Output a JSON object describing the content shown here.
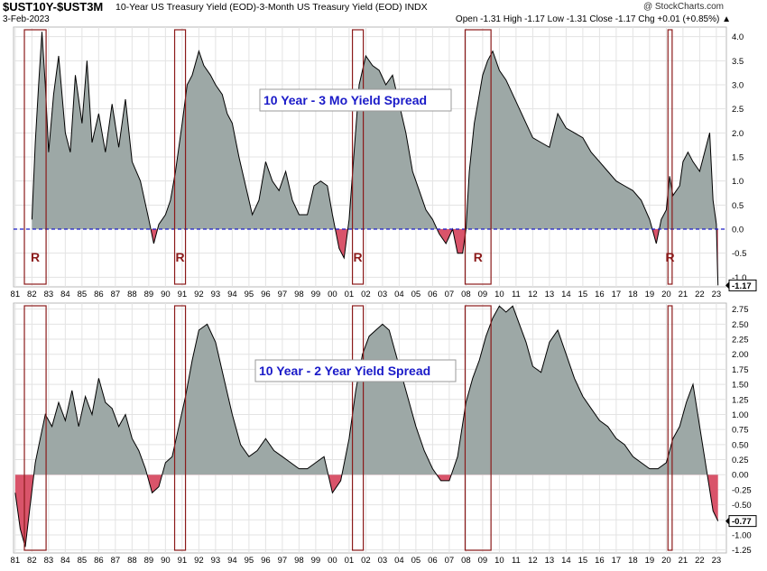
{
  "header": {
    "symbol": "$UST10Y-$UST3M",
    "description": "10-Year US Treasury Yield (EOD)-3-Month US Treasury Yield (EOD)  INDX",
    "date": "3-Feb-2023",
    "ohlc": "Open -1.31  High -1.17  Low -1.31  Close -1.17  Chg +0.01 (+0.85%) ▲",
    "watermark": "@ StockCharts.com"
  },
  "colors": {
    "positive": "#9da8a6",
    "negative": "#d9546a",
    "line": "#000000",
    "recession_box": "#8b1a1a",
    "zero_line": "#1a1ac8",
    "title_text": "#1a1ac8"
  },
  "recessions": [
    {
      "label": "R",
      "start": 1981.55,
      "end": 1982.85
    },
    {
      "label": "R",
      "start": 1990.55,
      "end": 1991.2
    },
    {
      "label": "R",
      "start": 2001.2,
      "end": 2001.85
    },
    {
      "label": "R",
      "start": 2007.95,
      "end": 2009.5
    },
    {
      "label": "R",
      "start": 2020.1,
      "end": 2020.35
    }
  ],
  "x_axis": {
    "range": [
      1980.9,
      2023.6
    ],
    "tick_labels": [
      "81",
      "82",
      "83",
      "84",
      "85",
      "86",
      "87",
      "88",
      "89",
      "90",
      "91",
      "92",
      "93",
      "94",
      "95",
      "96",
      "97",
      "98",
      "99",
      "00",
      "01",
      "02",
      "03",
      "04",
      "05",
      "06",
      "07",
      "08",
      "09",
      "10",
      "11",
      "12",
      "13",
      "14",
      "15",
      "16",
      "17",
      "18",
      "19",
      "20",
      "21",
      "22",
      "23"
    ]
  },
  "chart_data": [
    {
      "type": "area",
      "title": "10 Year - 3 Mo Yield Spread",
      "ylim": [
        -1.2,
        4.2
      ],
      "y_ticks": [
        "4.0",
        "3.5",
        "3.0",
        "2.5",
        "2.0",
        "1.5",
        "1.0",
        "0.5",
        "0.0",
        "-0.5",
        "-1.0"
      ],
      "y_tick_values": [
        4.0,
        3.5,
        3.0,
        2.5,
        2.0,
        1.5,
        1.0,
        0.5,
        0.0,
        -0.5,
        -1.0
      ],
      "last_value": "-1.17",
      "zero_line": "dashed",
      "x": [
        1982.0,
        1982.2,
        1982.4,
        1982.6,
        1982.8,
        1983.0,
        1983.3,
        1983.6,
        1984.0,
        1984.3,
        1984.6,
        1985.0,
        1985.3,
        1985.6,
        1986.0,
        1986.4,
        1986.8,
        1987.2,
        1987.6,
        1988.0,
        1988.5,
        1989.0,
        1989.3,
        1989.6,
        1990.0,
        1990.3,
        1990.6,
        1991.0,
        1991.3,
        1991.6,
        1992.0,
        1992.3,
        1992.7,
        1993.0,
        1993.4,
        1993.7,
        1994.0,
        1994.4,
        1994.8,
        1995.2,
        1995.6,
        1996.0,
        1996.4,
        1996.8,
        1997.2,
        1997.6,
        1998.0,
        1998.5,
        1998.9,
        1999.3,
        1999.7,
        2000.0,
        2000.4,
        2000.7,
        2001.0,
        2001.3,
        2001.6,
        2002.0,
        2002.4,
        2002.8,
        2003.2,
        2003.6,
        2004.0,
        2004.4,
        2004.8,
        2005.2,
        2005.6,
        2006.0,
        2006.4,
        2006.8,
        2007.2,
        2007.5,
        2007.8,
        2008.0,
        2008.2,
        2008.5,
        2008.8,
        2009.0,
        2009.3,
        2009.6,
        2010.0,
        2010.4,
        2010.8,
        2011.2,
        2011.6,
        2012.0,
        2012.5,
        2013.0,
        2013.5,
        2014.0,
        2014.5,
        2015.0,
        2015.5,
        2016.0,
        2016.5,
        2017.0,
        2017.5,
        2018.0,
        2018.5,
        2019.0,
        2019.4,
        2019.7,
        2020.0,
        2020.2,
        2020.4,
        2020.8,
        2021.0,
        2021.3,
        2021.6,
        2022.0,
        2022.3,
        2022.6,
        2022.8,
        2023.0,
        2023.1
      ],
      "values": [
        0.2,
        1.8,
        3.0,
        4.1,
        3.0,
        1.6,
        2.8,
        3.6,
        2.0,
        1.6,
        3.2,
        2.2,
        3.5,
        1.8,
        2.4,
        1.6,
        2.6,
        1.7,
        2.7,
        1.4,
        1.0,
        0.2,
        -0.3,
        0.1,
        0.3,
        0.6,
        1.2,
        2.2,
        3.0,
        3.2,
        3.7,
        3.4,
        3.2,
        3.0,
        2.8,
        2.4,
        2.2,
        1.5,
        0.9,
        0.3,
        0.6,
        1.4,
        1.0,
        0.8,
        1.2,
        0.6,
        0.3,
        0.3,
        0.9,
        1.0,
        0.9,
        0.3,
        -0.4,
        -0.6,
        0.2,
        1.6,
        3.0,
        3.6,
        3.4,
        3.3,
        3.0,
        3.2,
        2.6,
        2.0,
        1.2,
        0.8,
        0.4,
        0.2,
        -0.1,
        -0.3,
        0.0,
        -0.5,
        -0.5,
        0.0,
        1.2,
        2.2,
        2.8,
        3.2,
        3.5,
        3.7,
        3.3,
        3.1,
        2.8,
        2.5,
        2.2,
        1.9,
        1.8,
        1.7,
        2.4,
        2.1,
        2.0,
        1.9,
        1.6,
        1.4,
        1.2,
        1.0,
        0.9,
        0.8,
        0.6,
        0.2,
        -0.3,
        0.2,
        0.4,
        1.1,
        0.7,
        0.9,
        1.4,
        1.6,
        1.4,
        1.2,
        1.6,
        2.0,
        0.6,
        0.1,
        -1.17
      ]
    },
    {
      "type": "area",
      "title": "10 Year - 2 Year Yield Spread",
      "ylim": [
        -1.3,
        2.85
      ],
      "y_ticks": [
        "2.75",
        "2.50",
        "2.25",
        "2.00",
        "1.75",
        "1.50",
        "1.25",
        "1.00",
        "0.75",
        "0.50",
        "0.25",
        "0.00",
        "-0.25",
        "-0.50",
        "-0.75",
        "-1.00",
        "-1.25"
      ],
      "y_tick_values": [
        2.75,
        2.5,
        2.25,
        2.0,
        1.75,
        1.5,
        1.25,
        1.0,
        0.75,
        0.5,
        0.25,
        0.0,
        -0.25,
        -0.5,
        -0.75,
        -1.0,
        -1.25
      ],
      "last_value": "-0.77",
      "x": [
        1981.0,
        1981.3,
        1981.6,
        1981.9,
        1982.2,
        1982.5,
        1982.8,
        1983.2,
        1983.6,
        1984.0,
        1984.4,
        1984.8,
        1985.2,
        1985.6,
        1986.0,
        1986.4,
        1986.8,
        1987.2,
        1987.6,
        1988.0,
        1988.4,
        1988.8,
        1989.2,
        1989.6,
        1990.0,
        1990.4,
        1990.8,
        1991.2,
        1991.6,
        1992.0,
        1992.5,
        1993.0,
        1993.5,
        1994.0,
        1994.5,
        1995.0,
        1995.5,
        1996.0,
        1996.5,
        1997.0,
        1997.5,
        1998.0,
        1998.5,
        1999.0,
        1999.5,
        2000.0,
        2000.5,
        2001.0,
        2001.4,
        2001.8,
        2002.2,
        2002.6,
        2003.0,
        2003.4,
        2003.8,
        2004.2,
        2004.6,
        2005.0,
        2005.5,
        2006.0,
        2006.5,
        2007.0,
        2007.5,
        2008.0,
        2008.4,
        2008.8,
        2009.2,
        2009.6,
        2010.0,
        2010.4,
        2010.8,
        2011.2,
        2011.6,
        2012.0,
        2012.5,
        2013.0,
        2013.5,
        2014.0,
        2014.5,
        2015.0,
        2015.5,
        2016.0,
        2016.5,
        2017.0,
        2017.5,
        2018.0,
        2018.5,
        2019.0,
        2019.5,
        2020.0,
        2020.4,
        2020.8,
        2021.2,
        2021.6,
        2022.0,
        2022.4,
        2022.8,
        2023.1
      ],
      "values": [
        -0.3,
        -0.9,
        -1.2,
        -0.5,
        0.2,
        0.6,
        1.0,
        0.8,
        1.2,
        0.9,
        1.4,
        0.8,
        1.3,
        1.0,
        1.6,
        1.2,
        1.1,
        0.8,
        1.0,
        0.6,
        0.4,
        0.1,
        -0.3,
        -0.2,
        0.2,
        0.3,
        0.8,
        1.3,
        1.9,
        2.4,
        2.5,
        2.2,
        1.6,
        1.0,
        0.5,
        0.3,
        0.4,
        0.6,
        0.4,
        0.3,
        0.2,
        0.1,
        0.1,
        0.2,
        0.3,
        -0.3,
        -0.1,
        0.6,
        1.4,
        2.0,
        2.3,
        2.4,
        2.5,
        2.4,
        2.0,
        1.6,
        1.2,
        0.8,
        0.4,
        0.1,
        -0.1,
        -0.1,
        0.3,
        1.2,
        1.6,
        1.9,
        2.3,
        2.6,
        2.8,
        2.7,
        2.8,
        2.5,
        2.2,
        1.8,
        1.7,
        2.2,
        2.4,
        2.0,
        1.6,
        1.3,
        1.1,
        0.9,
        0.8,
        0.6,
        0.5,
        0.3,
        0.2,
        0.1,
        0.1,
        0.2,
        0.6,
        0.8,
        1.2,
        1.5,
        0.8,
        0.1,
        -0.6,
        -0.77
      ]
    }
  ]
}
